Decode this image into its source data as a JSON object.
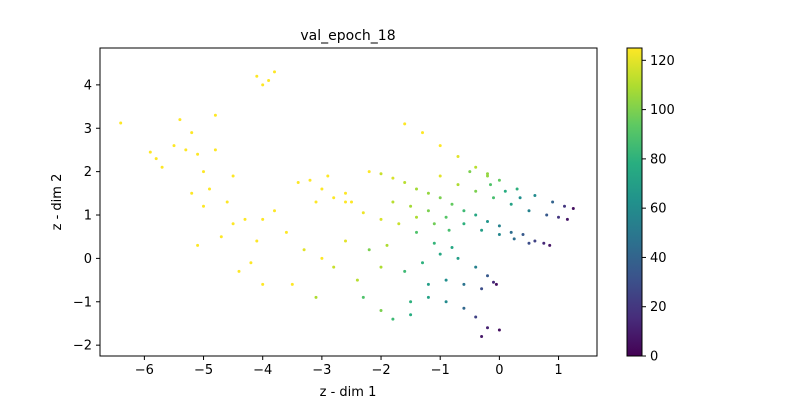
{
  "chart_data": {
    "type": "scatter",
    "title": "val_epoch_18",
    "xlabel": "z - dim 1",
    "ylabel": "z - dim 2",
    "xlim": [
      -6.75,
      1.65
    ],
    "ylim": [
      -2.25,
      4.85
    ],
    "xticks": [
      -6,
      -5,
      -4,
      -3,
      -2,
      -1,
      0,
      1
    ],
    "yticks": [
      -2,
      -1,
      0,
      1,
      2,
      3,
      4
    ],
    "xtick_labels": [
      "−6",
      "−5",
      "−4",
      "−3",
      "−2",
      "−1",
      "0",
      "1"
    ],
    "ytick_labels": [
      "−2",
      "−1",
      "0",
      "1",
      "2",
      "3",
      "4"
    ],
    "colorbar": {
      "colormap": "viridis",
      "range": [
        0,
        125
      ],
      "ticks": [
        0,
        20,
        40,
        60,
        80,
        100,
        120
      ],
      "tick_labels": [
        "0",
        "20",
        "40",
        "60",
        "80",
        "100",
        "120"
      ]
    },
    "grid": false,
    "series": [
      {
        "points": [
          [
            -6.4,
            3.12,
            125
          ],
          [
            -5.9,
            2.45,
            125
          ],
          [
            -5.8,
            2.3,
            125
          ],
          [
            -5.7,
            2.1,
            125
          ],
          [
            -5.5,
            2.6,
            125
          ],
          [
            -5.4,
            3.2,
            125
          ],
          [
            -5.3,
            2.5,
            125
          ],
          [
            -5.2,
            2.9,
            125
          ],
          [
            -5.1,
            2.4,
            125
          ],
          [
            -5.0,
            2.0,
            125
          ],
          [
            -4.9,
            1.6,
            125
          ],
          [
            -5.0,
            1.2,
            125
          ],
          [
            -5.2,
            1.5,
            125
          ],
          [
            -4.8,
            2.5,
            125
          ],
          [
            -4.6,
            1.3,
            125
          ],
          [
            -4.5,
            0.8,
            125
          ],
          [
            -4.7,
            0.5,
            125
          ],
          [
            -4.3,
            0.9,
            125
          ],
          [
            -4.1,
            0.4,
            125
          ],
          [
            -4.2,
            -0.1,
            125
          ],
          [
            -4.0,
            -0.6,
            125
          ],
          [
            -4.5,
            1.9,
            125
          ],
          [
            -4.8,
            3.3,
            125
          ],
          [
            -5.1,
            0.3,
            125
          ],
          [
            -4.4,
            -0.3,
            125
          ],
          [
            -4.0,
            0.9,
            125
          ],
          [
            -3.8,
            1.1,
            125
          ],
          [
            -3.6,
            0.6,
            125
          ],
          [
            -3.9,
            4.1,
            125
          ],
          [
            -4.1,
            4.2,
            125
          ],
          [
            -4.0,
            4.0,
            125
          ],
          [
            -3.8,
            4.3,
            125
          ],
          [
            -3.2,
            1.8,
            125
          ],
          [
            -3.0,
            1.6,
            125
          ],
          [
            -2.8,
            1.4,
            125
          ],
          [
            -2.6,
            1.5,
            125
          ],
          [
            -3.4,
            1.75,
            125
          ],
          [
            -3.1,
            1.3,
            125
          ],
          [
            -2.9,
            1.9,
            125
          ],
          [
            -2.5,
            1.3,
            125
          ],
          [
            -3.3,
            0.2,
            120
          ],
          [
            -3.0,
            0.0,
            125
          ],
          [
            -2.8,
            -0.2,
            115
          ],
          [
            -3.5,
            -0.6,
            125
          ],
          [
            -3.1,
            -0.9,
            110
          ],
          [
            -2.6,
            0.4,
            120
          ],
          [
            -2.4,
            -0.5,
            112
          ],
          [
            -2.2,
            0.2,
            100
          ],
          [
            -2.0,
            -0.2,
            110
          ],
          [
            -2.3,
            -0.9,
            90
          ],
          [
            -2.2,
            2.0,
            125
          ],
          [
            -2.0,
            1.95,
            115
          ],
          [
            -1.8,
            1.85,
            118
          ],
          [
            -1.6,
            1.75,
            112
          ],
          [
            -1.4,
            1.6,
            108
          ],
          [
            -1.2,
            1.5,
            105
          ],
          [
            -1.0,
            1.4,
            100
          ],
          [
            -0.8,
            1.25,
            95
          ],
          [
            -0.6,
            1.1,
            85
          ],
          [
            -0.4,
            1.0,
            75
          ],
          [
            -0.2,
            0.85,
            65
          ],
          [
            0.0,
            0.75,
            55
          ],
          [
            0.2,
            0.6,
            45
          ],
          [
            0.4,
            0.55,
            35
          ],
          [
            0.6,
            0.4,
            25
          ],
          [
            0.75,
            0.35,
            15
          ],
          [
            0.85,
            0.3,
            8
          ],
          [
            -1.8,
            1.3,
            112
          ],
          [
            -1.5,
            1.2,
            108
          ],
          [
            -1.2,
            1.1,
            100
          ],
          [
            -0.9,
            0.95,
            92
          ],
          [
            -0.6,
            0.8,
            80
          ],
          [
            -0.3,
            0.65,
            70
          ],
          [
            0.0,
            0.55,
            58
          ],
          [
            0.25,
            0.45,
            45
          ],
          [
            0.5,
            0.35,
            30
          ],
          [
            -1.0,
            1.9,
            120
          ],
          [
            -0.7,
            1.7,
            110
          ],
          [
            -0.4,
            1.55,
            100
          ],
          [
            -0.1,
            1.4,
            88
          ],
          [
            0.2,
            1.25,
            72
          ],
          [
            0.5,
            1.1,
            55
          ],
          [
            0.8,
            1.0,
            35
          ],
          [
            1.0,
            0.95,
            20
          ],
          [
            1.15,
            0.9,
            8
          ],
          [
            -0.2,
            1.9,
            105
          ],
          [
            0.0,
            1.8,
            95
          ],
          [
            0.3,
            1.6,
            80
          ],
          [
            0.6,
            1.45,
            60
          ],
          [
            0.9,
            1.3,
            40
          ],
          [
            1.1,
            1.2,
            20
          ],
          [
            1.25,
            1.15,
            5
          ],
          [
            -1.6,
            3.1,
            125
          ],
          [
            -1.3,
            2.9,
            125
          ],
          [
            -1.0,
            2.6,
            125
          ],
          [
            -0.7,
            2.35,
            120
          ],
          [
            -0.4,
            2.1,
            112
          ],
          [
            -0.2,
            1.95,
            105
          ],
          [
            -0.5,
            2.0,
            100
          ],
          [
            -0.15,
            1.7,
            90
          ],
          [
            0.1,
            1.55,
            78
          ],
          [
            0.35,
            1.4,
            62
          ],
          [
            -1.6,
            -0.3,
            85
          ],
          [
            -1.3,
            -0.1,
            80
          ],
          [
            -1.0,
            0.1,
            75
          ],
          [
            -0.7,
            0.0,
            70
          ],
          [
            -0.4,
            -0.2,
            55
          ],
          [
            -0.2,
            -0.4,
            35
          ],
          [
            -0.1,
            -0.55,
            15
          ],
          [
            -0.05,
            -0.6,
            5
          ],
          [
            -1.2,
            -0.6,
            70
          ],
          [
            -0.9,
            -0.5,
            62
          ],
          [
            -0.6,
            -0.6,
            48
          ],
          [
            -0.3,
            -0.7,
            30
          ],
          [
            -1.5,
            -1.0,
            80
          ],
          [
            -1.2,
            -0.9,
            72
          ],
          [
            -0.9,
            -1.0,
            60
          ],
          [
            -0.6,
            -1.15,
            42
          ],
          [
            -0.4,
            -1.35,
            25
          ],
          [
            -0.2,
            -1.6,
            12
          ],
          [
            0.0,
            -1.65,
            5
          ],
          [
            -0.3,
            -1.8,
            8
          ],
          [
            -1.8,
            -1.4,
            85
          ],
          [
            -1.5,
            -1.3,
            78
          ],
          [
            -2.0,
            -1.2,
            100
          ],
          [
            -1.9,
            0.3,
            110
          ],
          [
            -1.4,
            0.6,
            90
          ],
          [
            -1.1,
            0.35,
            82
          ],
          [
            -0.8,
            0.25,
            75
          ],
          [
            -2.6,
            1.3,
            125
          ],
          [
            -2.3,
            1.05,
            122
          ],
          [
            -2.0,
            0.9,
            118
          ],
          [
            -1.7,
            0.8,
            115
          ],
          [
            -1.4,
            0.95,
            110
          ],
          [
            -1.1,
            0.8,
            98
          ],
          [
            -0.85,
            0.65,
            88
          ]
        ]
      }
    ]
  }
}
